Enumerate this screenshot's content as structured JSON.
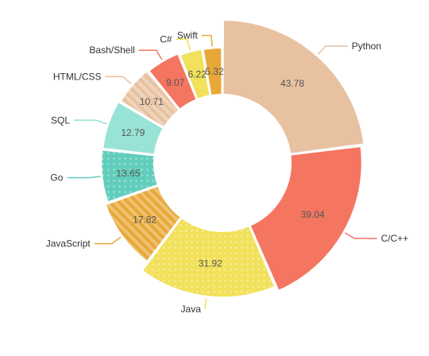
{
  "chart_data": {
    "type": "pie",
    "variant": "donut",
    "title": "",
    "categories": [
      "Python",
      "C/C++",
      "Java",
      "JavaScript",
      "Go",
      "SQL",
      "HTML/CSS",
      "Bash/Shell",
      "C#",
      "Swift"
    ],
    "values": [
      43.78,
      39.04,
      31.92,
      17.82,
      13.65,
      12.79,
      10.71,
      9.07,
      6.22,
      5.32
    ],
    "value_labels": [
      "43.78",
      "39.04",
      "31.92",
      "17.82",
      "13.65",
      "12.79",
      "10.71",
      "9.07",
      "6.22",
      "5.32"
    ],
    "colors": [
      "#e8c1a0",
      "#f47560",
      "#f1e15b",
      "#e8a838",
      "#61cdbb",
      "#97e3d5",
      "#e8c1a0",
      "#f47560",
      "#f1e15b",
      "#e8a838"
    ],
    "patterns": [
      "none",
      "none",
      "dots",
      "lines",
      "dots",
      "none",
      "lines",
      "none",
      "none",
      "none"
    ],
    "rose_radius": true,
    "legend": "none"
  }
}
